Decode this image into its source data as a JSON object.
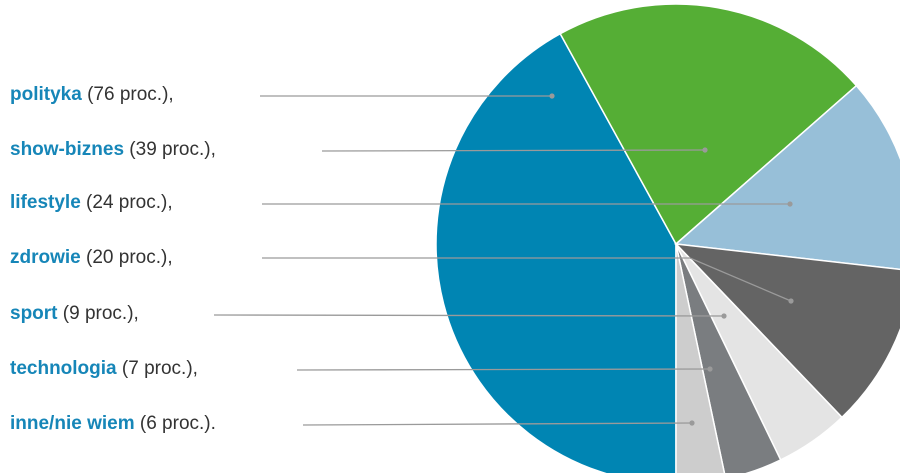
{
  "chart_data": {
    "type": "pie",
    "title": "",
    "slices": [
      {
        "name": "polityka",
        "value": 76,
        "label_suffix": "(76 proc.),",
        "color": "#0085b3"
      },
      {
        "name": "show-biznes",
        "value": 39,
        "label_suffix": "(39 proc.),",
        "color": "#55ae35"
      },
      {
        "name": "lifestyle",
        "value": 24,
        "label_suffix": "(24 proc.),",
        "color": "#97bfd8"
      },
      {
        "name": "zdrowie",
        "value": 20,
        "label_suffix": "(20 proc.),",
        "color": "#646464"
      },
      {
        "name": "sport",
        "value": 9,
        "label_suffix": "(9 proc.),",
        "color": "#e4e4e4"
      },
      {
        "name": "technologia",
        "value": 7,
        "label_suffix": "(7 proc.),",
        "color": "#7a7d80"
      },
      {
        "name": "inne/nie wiem",
        "value": 6,
        "label_suffix": "(6 proc.).",
        "color": "#cdcdcd"
      }
    ],
    "legend_position": "left"
  }
}
